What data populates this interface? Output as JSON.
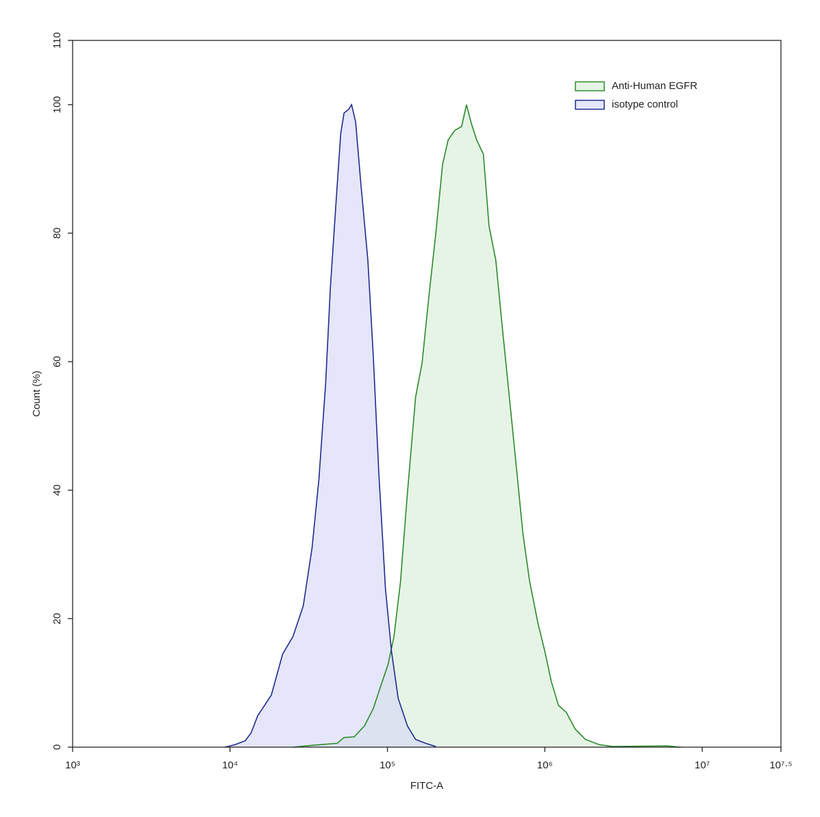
{
  "chart_data": {
    "type": "histogram-overlay",
    "x_label": "FITC-A",
    "y_label": "Count  (%)",
    "xscale": "log",
    "xlim": [
      1000,
      31622776.6
    ],
    "xticks": [
      {
        "value": 1000,
        "label": "10³"
      },
      {
        "value": 10000,
        "label": "10⁴"
      },
      {
        "value": 100000,
        "label": "10⁵"
      },
      {
        "value": 1000000,
        "label": "10⁶"
      },
      {
        "value": 10000000,
        "label": "10⁷"
      },
      {
        "value": 31622776.6,
        "label": "10⁷·⁵"
      }
    ],
    "ylim": [
      0,
      110
    ],
    "yticks": [
      0,
      20,
      40,
      60,
      80,
      100,
      110
    ],
    "legend": "upper right",
    "series": [
      {
        "name": "Anti-Human EGFR",
        "color": "#2a8a2a",
        "fill": "#d6ecd6",
        "x": [
          25100,
          33900,
          48000,
          53000,
          61500,
          71400,
          81300,
          89800,
          101000,
          110000,
          121000,
          134000,
          151000,
          166000,
          184000,
          203000,
          224000,
          243000,
          268000,
          296000,
          318000,
          341000,
          369000,
          407000,
          442000,
          488000,
          538000,
          595000,
          658000,
          726000,
          802000,
          904000,
          998000,
          1100000,
          1220000,
          1370000,
          1560000,
          1810000,
          2210000,
          2700000,
          5980000,
          7300000
        ],
        "values": [
          0,
          0.3,
          0.6,
          1.5,
          1.6,
          3.3,
          6,
          9.2,
          12.9,
          17.2,
          25.7,
          39.6,
          54.5,
          59.8,
          70.5,
          80,
          90.7,
          94.5,
          96,
          96.6,
          100,
          97.1,
          94.5,
          92.3,
          81.1,
          75.8,
          65.1,
          54.5,
          43.8,
          33.2,
          25.7,
          19.3,
          15,
          10.2,
          6.5,
          5.4,
          2.8,
          1.2,
          0.4,
          0.1,
          0.2,
          0
        ]
      },
      {
        "name": "isotype control",
        "color": "#1f2a8c",
        "fill": "#d4d6f6",
        "x": [
          9290,
          10800,
          12500,
          13600,
          15000,
          18300,
          21600,
          25100,
          29200,
          33200,
          36700,
          40500,
          43400,
          47000,
          50500,
          53000,
          56900,
          59200,
          62800,
          67900,
          75100,
          81300,
          88100,
          97200,
          106000,
          117000,
          134000,
          151000,
          175000,
          203000
        ],
        "values": [
          0,
          0.4,
          1,
          2.2,
          4.9,
          8.1,
          14.5,
          17.2,
          22,
          31,
          41.7,
          56.6,
          71.5,
          84.3,
          95.5,
          98.7,
          99.3,
          100,
          97.3,
          87.5,
          75.8,
          60.9,
          42.8,
          24.6,
          15,
          7.6,
          3.3,
          1.2,
          0.6,
          0.1
        ]
      }
    ]
  }
}
